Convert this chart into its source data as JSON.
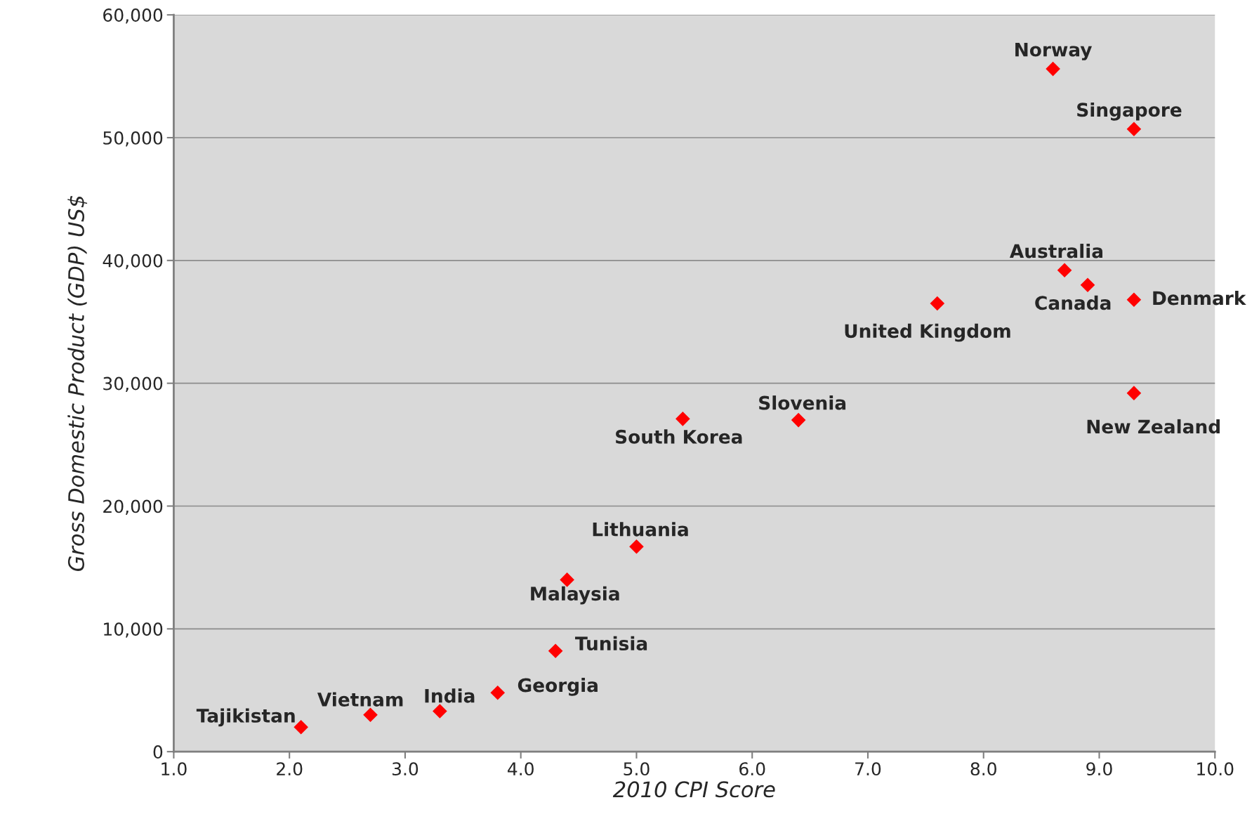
{
  "chart_data": {
    "type": "scatter",
    "xlabel": "2010 CPI Score",
    "ylabel": "Gross Domestic Product (GDP) US$",
    "x": [
      2.1,
      2.7,
      3.3,
      3.8,
      4.3,
      4.4,
      5.0,
      5.4,
      6.4,
      7.6,
      8.7,
      8.9,
      9.3,
      9.3,
      9.3,
      8.6
    ],
    "series": [
      {
        "color": "#ff0000",
        "values": [
          2000,
          3000,
          3300,
          4800,
          8200,
          14000,
          16700,
          27100,
          27000,
          36500,
          39200,
          38000,
          36800,
          29200,
          50700,
          55600
        ]
      }
    ],
    "annotations": [
      {
        "text": "Tajikistan",
        "x": 2.1,
        "y": 2000
      },
      {
        "text": "Vietnam",
        "x": 2.7,
        "y": 3000
      },
      {
        "text": "India",
        "x": 3.3,
        "y": 3300
      },
      {
        "text": "Georgia",
        "x": 3.8,
        "y": 4800
      },
      {
        "text": "Tunisia",
        "x": 4.3,
        "y": 8200
      },
      {
        "text": "Malaysia",
        "x": 4.4,
        "y": 14000
      },
      {
        "text": "Lithuania",
        "x": 5.0,
        "y": 16700
      },
      {
        "text": "South Korea",
        "x": 5.4,
        "y": 27100
      },
      {
        "text": "Slovenia",
        "x": 6.4,
        "y": 27000
      },
      {
        "text": "United Kingdom",
        "x": 7.6,
        "y": 36500
      },
      {
        "text": "Australia",
        "x": 8.7,
        "y": 39200
      },
      {
        "text": "Canada",
        "x": 8.9,
        "y": 38000
      },
      {
        "text": "Denmark",
        "x": 9.3,
        "y": 36800
      },
      {
        "text": "New Zealand",
        "x": 9.3,
        "y": 29200
      },
      {
        "text": "Singapore",
        "x": 9.3,
        "y": 50700
      },
      {
        "text": "Norway",
        "x": 8.6,
        "y": 55600
      }
    ],
    "xlim": [
      1.0,
      10.0
    ],
    "xticks": [
      {
        "value": 1,
        "label": "1.0"
      },
      {
        "value": 2,
        "label": "2.0"
      },
      {
        "value": 3,
        "label": "3.0"
      },
      {
        "value": 4,
        "label": "4.0"
      },
      {
        "value": 5,
        "label": "5.0"
      },
      {
        "value": 6,
        "label": "6.0"
      },
      {
        "value": 7,
        "label": "7.0"
      },
      {
        "value": 8,
        "label": "8.0"
      },
      {
        "value": 9,
        "label": "9.0"
      },
      {
        "value": 10,
        "label": "10.0"
      }
    ],
    "ylim": [
      0,
      60000
    ],
    "yticks": [
      0,
      {
        "value": 10000,
        "label": "10,000"
      },
      {
        "value": 20000,
        "label": "20,000"
      },
      {
        "value": 30000,
        "label": "30,000"
      },
      {
        "value": 40000,
        "label": "40,000"
      },
      {
        "value": 50000,
        "label": "50,000"
      },
      {
        "value": 60000,
        "label": "60,000"
      }
    ],
    "grid": "y",
    "marker": "diamond"
  }
}
